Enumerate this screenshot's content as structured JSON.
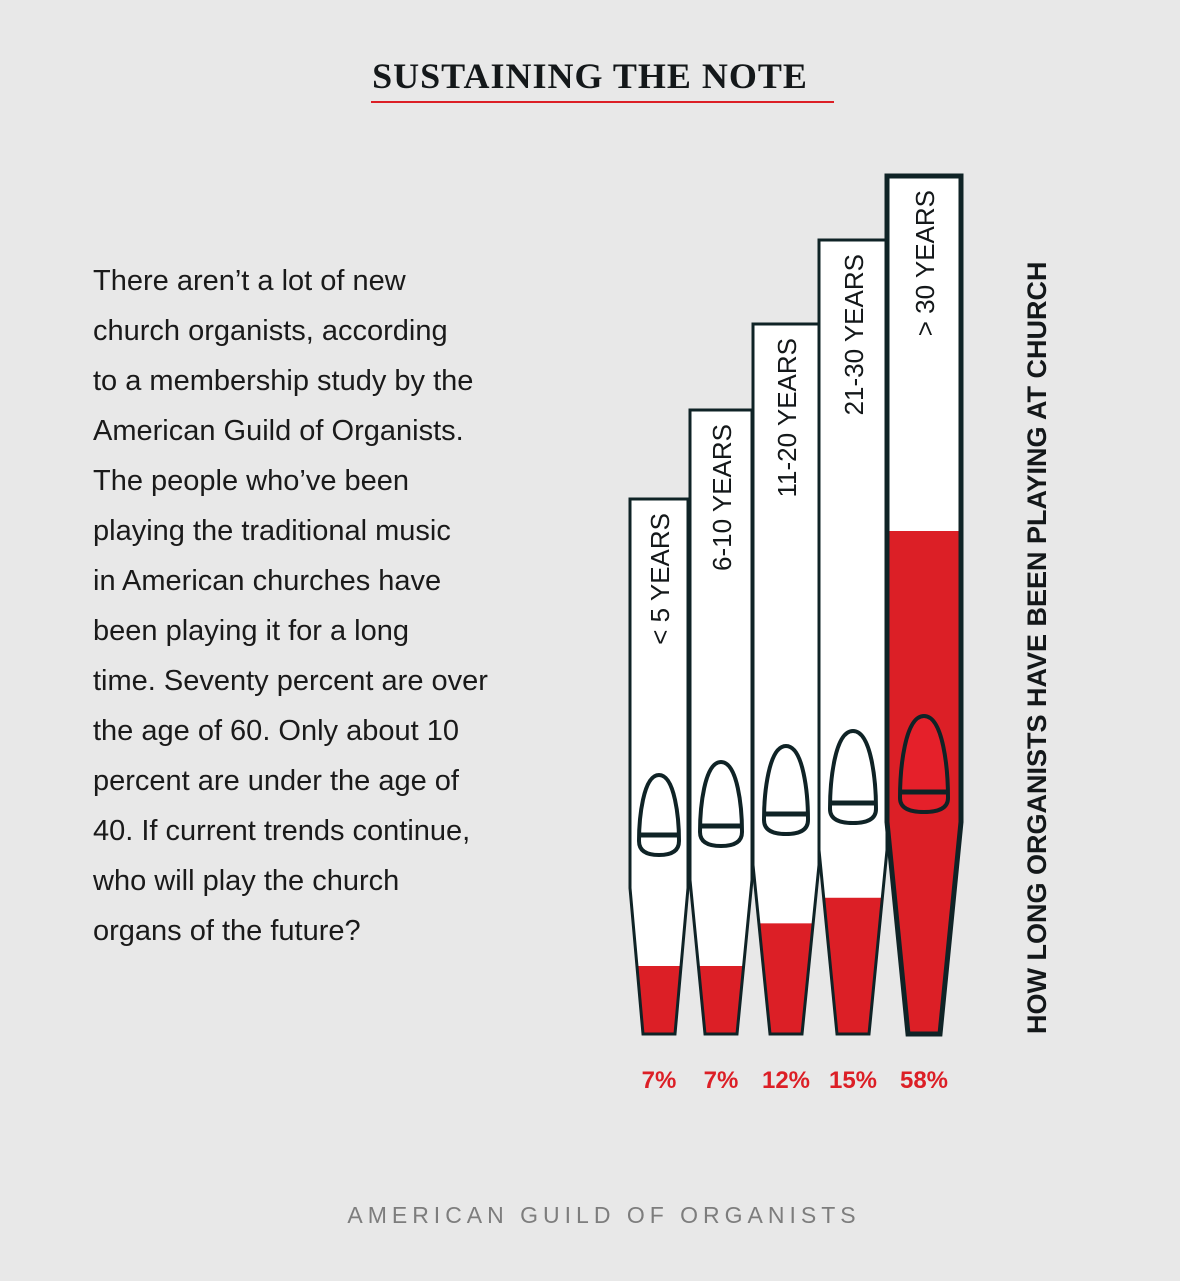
{
  "title": "SUSTAINING THE NOTE",
  "body_lines": [
    "There aren’t a lot of new",
    "church organists, according",
    "to a membership study by the",
    "American Guild of Organists.",
    "The people who’ve been",
    "playing the traditional music",
    "in American churches have",
    "been playing it for a long",
    "time. Seventy percent are over",
    "the age of 60. Only about 10",
    "percent are under the age of",
    "40. If current trends continue,",
    "who will play the church",
    "organs of the future?"
  ],
  "source": "AMERICAN GUILD OF ORGANISTS",
  "colors": {
    "background": "#e8e8e8",
    "accent_red": "#dc1f26",
    "outline": "#0f2326",
    "pipe_fill": "#ffffff"
  },
  "chart_data": {
    "type": "bar",
    "style": "organ pipes",
    "axis_label": "HOW LONG ORGANISTS HAVE BEEN PLAYING AT CHURCH",
    "categories": [
      "< 5 YEARS",
      "6-10 YEARS",
      "11-20 YEARS",
      "21-30 YEARS",
      "> 30 YEARS"
    ],
    "values": [
      7,
      7,
      12,
      15,
      58
    ],
    "value_labels": [
      "7%",
      "7%",
      "12%",
      "15%",
      "58%"
    ],
    "unit": "%"
  }
}
